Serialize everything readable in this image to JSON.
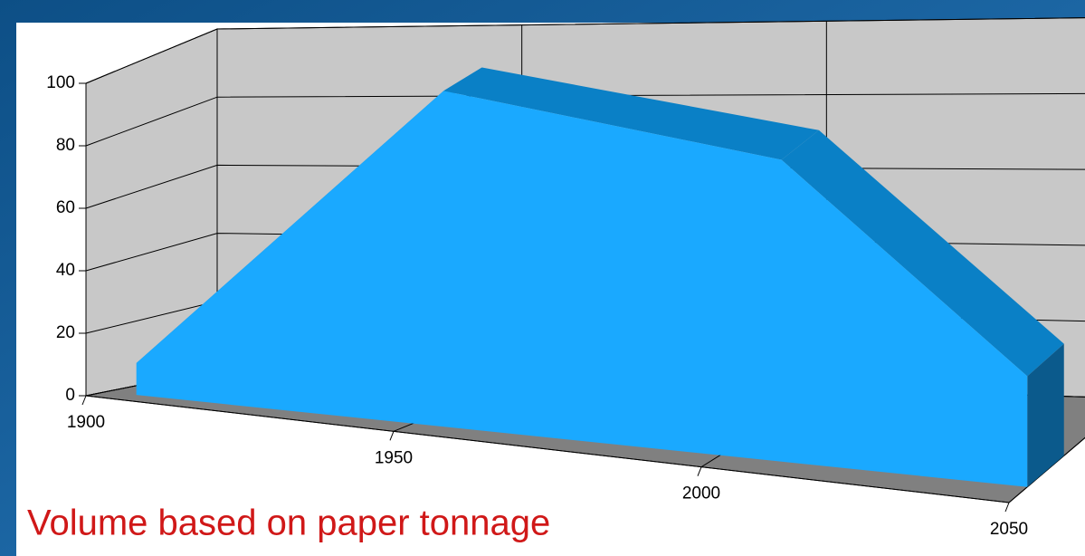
{
  "chart_data": {
    "type": "area",
    "annotation": "Volume based on paper tonnage",
    "x": [
      1905,
      1955,
      2010,
      2050
    ],
    "series": [
      {
        "name": null,
        "color": "#1aa9ff",
        "values": [
          10,
          100,
          85,
          30
        ]
      }
    ],
    "xlim": [
      1900,
      2050
    ],
    "xticks": [
      1900,
      1950,
      2000,
      2050
    ],
    "ylim": [
      0,
      100
    ],
    "yticks": [
      0,
      20,
      40,
      60,
      80,
      100
    ],
    "grid": true
  }
}
